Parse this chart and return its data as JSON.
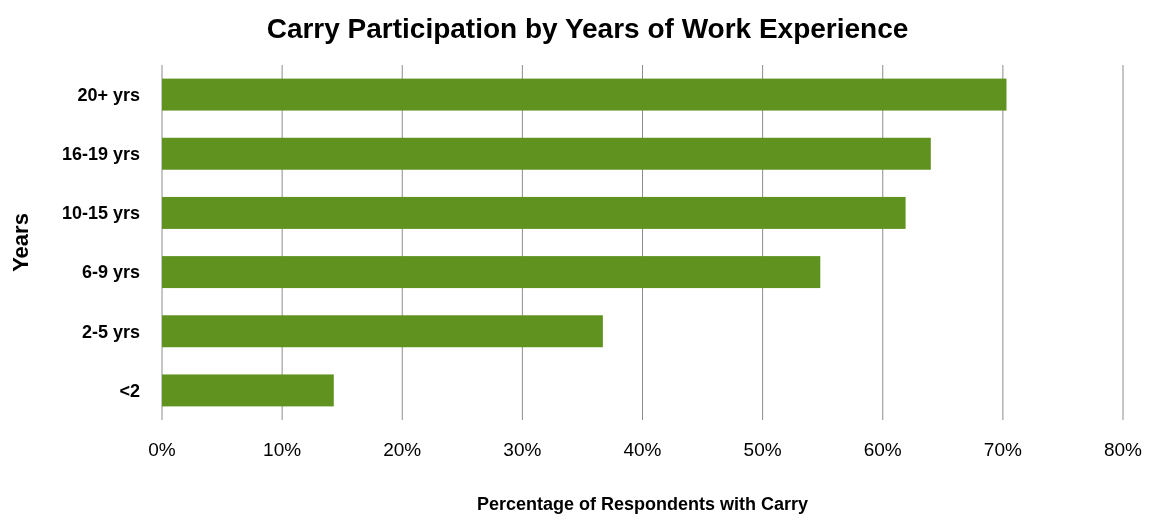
{
  "chart_data": {
    "type": "bar",
    "orientation": "horizontal",
    "title": "Carry Participation by Years of Work Experience",
    "xlabel": "Percentage of Respondents with Carry",
    "ylabel": "Years",
    "categories": [
      "20+ yrs",
      "16-19 yrs",
      "10-15 yrs",
      "6-9 yrs",
      "2-5 yrs",
      "<2"
    ],
    "values": [
      70.3,
      64.0,
      61.9,
      54.8,
      36.7,
      14.3
    ],
    "color": "#5f921e",
    "xlim": [
      0,
      80
    ],
    "xticks": [
      {
        "value": 0,
        "label": "0%"
      },
      {
        "value": 10,
        "label": "10%"
      },
      {
        "value": 20,
        "label": "20%"
      },
      {
        "value": 30,
        "label": "30%"
      },
      {
        "value": 40,
        "label": "40%"
      },
      {
        "value": 50,
        "label": "50%"
      },
      {
        "value": 60,
        "label": "60%"
      },
      {
        "value": 70,
        "label": "70%"
      },
      {
        "value": 80,
        "label": "80%"
      }
    ],
    "grid": "x"
  }
}
